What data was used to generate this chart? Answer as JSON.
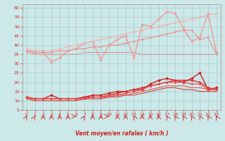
{
  "background_color": "#cce8e8",
  "grid_color": "#aacccc",
  "xlabel": "Vent moyen/en rafales ( km/h )",
  "xlim": [
    -0.5,
    23.5
  ],
  "ylim": [
    5,
    62
  ],
  "yticks": [
    5,
    10,
    15,
    20,
    25,
    30,
    35,
    40,
    45,
    50,
    55,
    60
  ],
  "xticks": [
    0,
    1,
    2,
    3,
    4,
    5,
    6,
    7,
    8,
    9,
    10,
    11,
    12,
    13,
    14,
    15,
    16,
    17,
    18,
    19,
    20,
    21,
    22,
    23
  ],
  "lines": [
    {
      "x": [
        0,
        1,
        2,
        3,
        4,
        5,
        6,
        7,
        8,
        9,
        10,
        11,
        12,
        13,
        14,
        15,
        16,
        17,
        18,
        19,
        20,
        21,
        22,
        23
      ],
      "y": [
        37,
        36,
        36,
        31,
        33,
        37,
        38,
        41,
        42,
        32,
        40,
        43,
        45,
        33,
        51,
        50,
        54,
        58,
        57,
        49,
        42,
        44,
        57,
        36
      ],
      "color": "#f09898",
      "marker": "o",
      "markersize": 2.0,
      "linewidth": 1.0
    },
    {
      "x": [
        0,
        1,
        2,
        3,
        4,
        5,
        6,
        7,
        8,
        9,
        10,
        11,
        12,
        13,
        14,
        15,
        16,
        17,
        18,
        19,
        20,
        21,
        22,
        23
      ],
      "y": [
        38,
        37,
        37,
        37,
        38,
        39,
        40,
        41,
        42,
        43,
        44,
        45,
        46,
        47,
        48,
        49,
        50,
        51,
        52,
        53,
        54,
        55,
        56,
        57
      ],
      "color": "#f0b0b0",
      "marker": "o",
      "markersize": 1.5,
      "linewidth": 0.8
    },
    {
      "x": [
        0,
        1,
        2,
        3,
        4,
        5,
        6,
        7,
        8,
        9,
        10,
        11,
        12,
        13,
        14,
        15,
        16,
        17,
        18,
        19,
        20,
        21,
        22,
        23
      ],
      "y": [
        37,
        36,
        36,
        36,
        37,
        37,
        38,
        38,
        39,
        39,
        40,
        40,
        41,
        42,
        43,
        44,
        45,
        46,
        47,
        48,
        48,
        43,
        44,
        35
      ],
      "color": "#e89090",
      "marker": "o",
      "markersize": 1.5,
      "linewidth": 0.8
    },
    {
      "x": [
        0,
        1,
        2,
        3,
        4,
        5,
        6,
        7,
        8,
        9,
        10,
        11,
        12,
        13,
        14,
        15,
        16,
        17,
        18,
        19,
        20,
        21,
        22,
        23
      ],
      "y": [
        36,
        35,
        35,
        35,
        35,
        35,
        35,
        36,
        36,
        36,
        36,
        36,
        36,
        36,
        35,
        35,
        35,
        35,
        35,
        35,
        35,
        35,
        35,
        35
      ],
      "color": "#d89898",
      "marker": null,
      "markersize": 0,
      "linewidth": 0.8
    },
    {
      "x": [
        0,
        1,
        2,
        3,
        4,
        5,
        6,
        7,
        8,
        9,
        10,
        11,
        12,
        13,
        14,
        15,
        16,
        17,
        18,
        19,
        20,
        21,
        22,
        23
      ],
      "y": [
        12,
        11,
        11,
        13,
        11,
        11,
        11,
        12,
        13,
        13,
        14,
        15,
        15,
        16,
        16,
        19,
        21,
        22,
        21,
        20,
        22,
        25,
        16,
        17
      ],
      "color": "#cc2222",
      "marker": "D",
      "markersize": 2.0,
      "linewidth": 1.0
    },
    {
      "x": [
        0,
        1,
        2,
        3,
        4,
        5,
        6,
        7,
        8,
        9,
        10,
        11,
        12,
        13,
        14,
        15,
        16,
        17,
        18,
        19,
        20,
        21,
        22,
        23
      ],
      "y": [
        12,
        11,
        11,
        11,
        11,
        11,
        11,
        12,
        12,
        12,
        13,
        14,
        15,
        16,
        17,
        18,
        19,
        20,
        21,
        21,
        21,
        20,
        17,
        16
      ],
      "color": "#dd3333",
      "marker": "o",
      "markersize": 2.0,
      "linewidth": 1.0
    },
    {
      "x": [
        0,
        1,
        2,
        3,
        4,
        5,
        6,
        7,
        8,
        9,
        10,
        11,
        12,
        13,
        14,
        15,
        16,
        17,
        18,
        19,
        20,
        21,
        22,
        23
      ],
      "y": [
        12,
        11,
        11,
        11,
        11,
        11,
        11,
        11,
        12,
        12,
        13,
        13,
        14,
        15,
        16,
        18,
        19,
        20,
        20,
        20,
        19,
        19,
        16,
        16
      ],
      "color": "#ee4444",
      "marker": "o",
      "markersize": 1.5,
      "linewidth": 0.8
    },
    {
      "x": [
        0,
        1,
        2,
        3,
        4,
        5,
        6,
        7,
        8,
        9,
        10,
        11,
        12,
        13,
        14,
        15,
        16,
        17,
        18,
        19,
        20,
        21,
        22,
        23
      ],
      "y": [
        11,
        11,
        11,
        11,
        11,
        11,
        11,
        11,
        12,
        12,
        12,
        13,
        13,
        14,
        15,
        16,
        17,
        18,
        18,
        18,
        17,
        17,
        16,
        16
      ],
      "color": "#ee5555",
      "marker": null,
      "markersize": 0,
      "linewidth": 0.8
    },
    {
      "x": [
        0,
        1,
        2,
        3,
        4,
        5,
        6,
        7,
        8,
        9,
        10,
        11,
        12,
        13,
        14,
        15,
        16,
        17,
        18,
        19,
        20,
        21,
        22,
        23
      ],
      "y": [
        11,
        10,
        10,
        10,
        10,
        10,
        10,
        11,
        11,
        11,
        12,
        12,
        13,
        13,
        14,
        15,
        16,
        17,
        17,
        16,
        16,
        15,
        15,
        15
      ],
      "color": "#cc4444",
      "marker": null,
      "markersize": 0,
      "linewidth": 0.8
    }
  ]
}
